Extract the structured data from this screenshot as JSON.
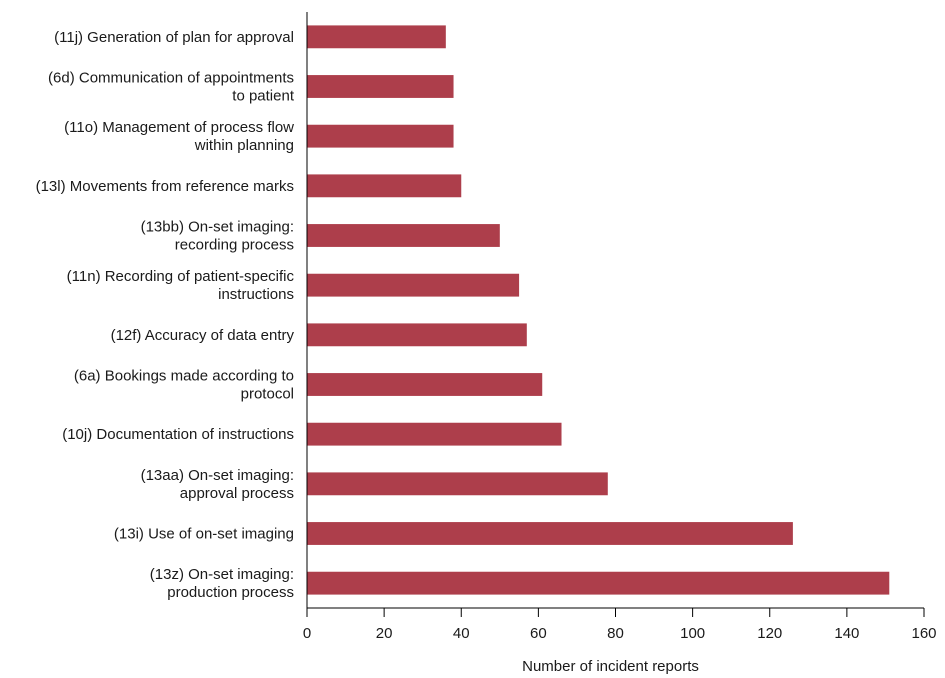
{
  "chart_data": {
    "type": "bar",
    "orientation": "horizontal",
    "categories": [
      "(11j) Generation of plan for approval",
      "(6d) Communication of appointments to patient",
      "(11o) Management of process flow within planning",
      "(13l) Movements from reference marks",
      "(13bb) On-set imaging: recording process",
      "(11n) Recording of patient-specific instructions",
      "(12f) Accuracy of data entry",
      "(6a) Bookings made according to protocol",
      "(10j) Documentation of instructions",
      "(13aa) On-set imaging: approval process",
      "(13i) Use of on-set imaging",
      "(13z) On-set imaging: production process"
    ],
    "category_lines": [
      [
        "(11j) Generation of plan for approval"
      ],
      [
        "(6d) Communication of appointments",
        "to patient"
      ],
      [
        "(11o) Management of process flow",
        "within planning"
      ],
      [
        "(13l) Movements from reference marks"
      ],
      [
        "(13bb) On-set imaging:",
        "recording process"
      ],
      [
        "(11n) Recording of patient-specific",
        "instructions"
      ],
      [
        "(12f) Accuracy of data entry"
      ],
      [
        "(6a) Bookings made according to",
        "protocol"
      ],
      [
        "(10j) Documentation of instructions"
      ],
      [
        "(13aa) On-set imaging:",
        "approval process"
      ],
      [
        "(13i) Use of on-set imaging"
      ],
      [
        "(13z) On-set imaging:",
        "production process"
      ]
    ],
    "values": [
      36,
      38,
      38,
      40,
      50,
      55,
      57,
      61,
      66,
      78,
      126,
      151
    ],
    "xlabel": "Number of incident reports",
    "xlim": [
      0,
      160
    ],
    "xticks": [
      0,
      20,
      40,
      60,
      80,
      100,
      120,
      140,
      160
    ],
    "grid": false,
    "bar_color": "#ad3e4b"
  }
}
